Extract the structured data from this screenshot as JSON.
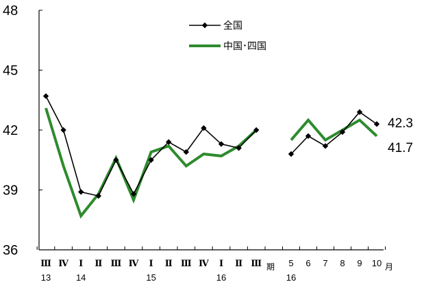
{
  "chart_data": {
    "type": "line",
    "ylim": [
      36,
      48
    ],
    "yticks": [
      "36",
      "39",
      "42",
      "45",
      "48"
    ],
    "quarterly": {
      "categories": [
        "Ⅲ",
        "Ⅳ",
        "Ⅰ",
        "Ⅱ",
        "Ⅲ",
        "Ⅳ",
        "Ⅰ",
        "Ⅱ",
        "Ⅲ",
        "Ⅳ",
        "Ⅰ",
        "Ⅱ",
        "Ⅲ"
      ],
      "year_labels": [
        "13",
        "14",
        "15",
        "16"
      ],
      "unit_label": "期"
    },
    "monthly": {
      "categories": [
        "5",
        "6",
        "7",
        "8",
        "9",
        "10"
      ],
      "year_label": "16",
      "unit_label": "月"
    },
    "series": [
      {
        "name": "全国",
        "color": "#000000",
        "marker": "diamond",
        "quarterly_values": [
          43.7,
          42.0,
          38.9,
          38.7,
          40.5,
          38.8,
          40.5,
          41.4,
          40.9,
          42.1,
          41.3,
          41.1,
          42.0
        ],
        "monthly_values": [
          40.8,
          41.7,
          41.2,
          41.9,
          42.9,
          42.3
        ]
      },
      {
        "name": "中国･四国",
        "color": "#2e8b2e",
        "marker": "none",
        "quarterly_values": [
          43.1,
          40.2,
          37.7,
          38.8,
          40.6,
          38.5,
          40.9,
          41.2,
          40.2,
          40.8,
          40.7,
          41.2,
          42.0
        ],
        "monthly_values": [
          41.5,
          42.5,
          41.5,
          42.0,
          42.5,
          41.7
        ]
      }
    ],
    "end_labels": [
      "42.3",
      "41.7"
    ]
  }
}
